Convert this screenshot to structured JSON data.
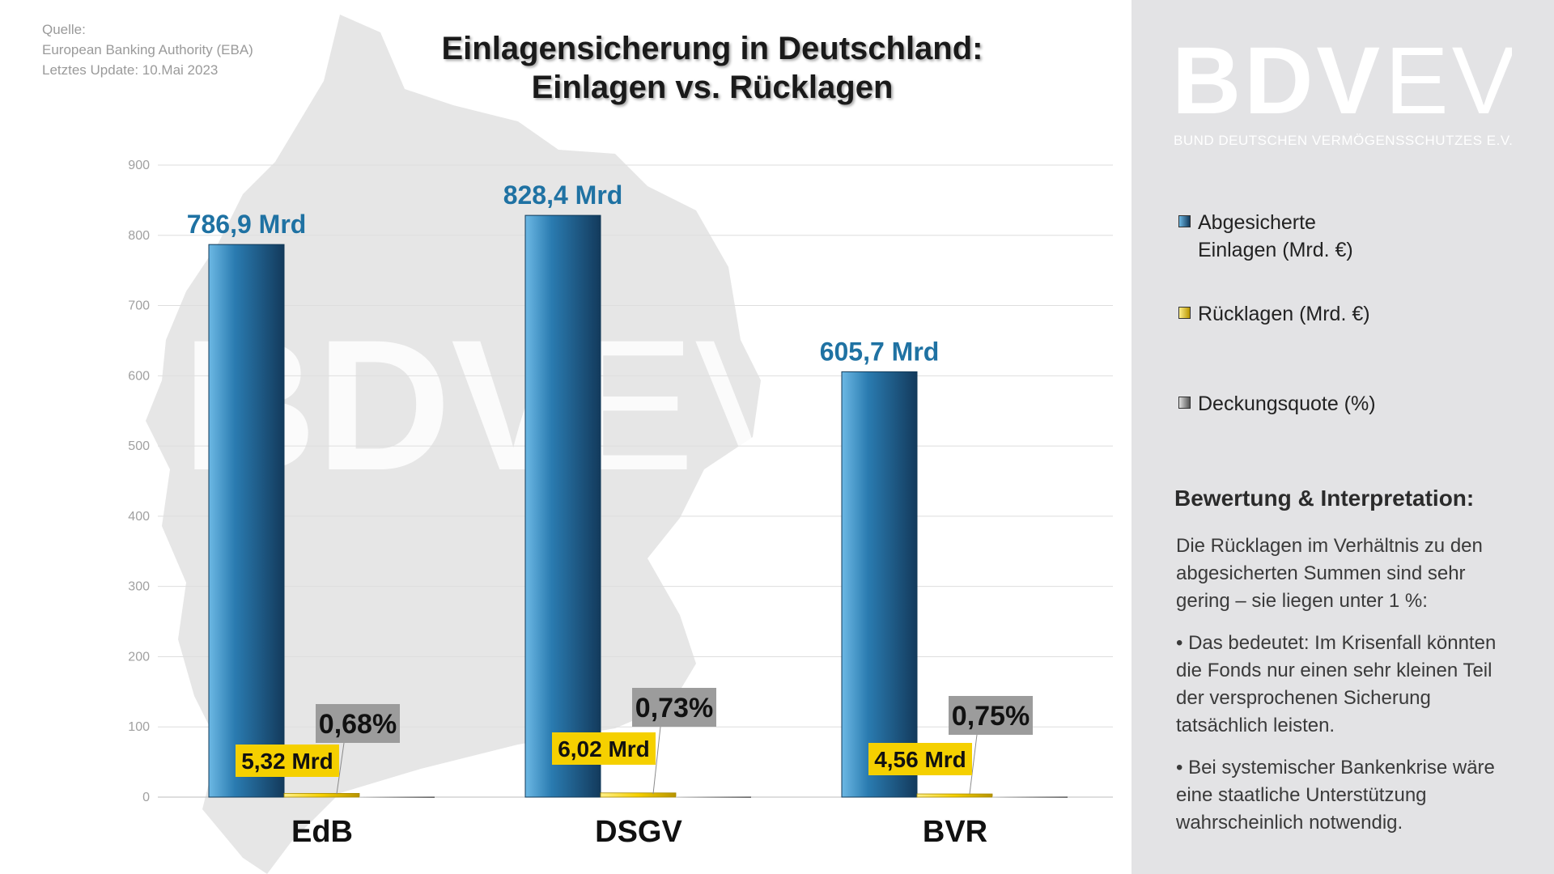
{
  "source": {
    "line1": "Quelle:",
    "line2": "European Banking Authority (EBA)",
    "line3": "Letztes Update: 10.Mai 2023"
  },
  "title": {
    "line1": "Einlagensicherung in Deutschland:",
    "line2": "Einlagen vs. Rücklagen"
  },
  "logo": {
    "text": "BDVEV",
    "bold_part": "BDV",
    "light_part": "EV",
    "subtitle": "BUND DEUTSCHEN VERMÖGENSSCHUTZES E.V."
  },
  "colors": {
    "deposits": "#2a7bb0",
    "reserves": "#f5d000",
    "ratio": "#9a9a9a",
    "value_label": "#1f72a3",
    "panel": "#e3e3e5"
  },
  "legend": [
    {
      "icon": "blue-square-icon",
      "line1": "Abgesicherte",
      "line2": "Einlagen (Mrd. €)"
    },
    {
      "icon": "yellow-square-icon",
      "line1": "Rücklagen (Mrd. €)",
      "line2": ""
    },
    {
      "icon": "gray-square-icon",
      "line1": "Deckungsquote (%)",
      "line2": ""
    }
  ],
  "evaluation": {
    "heading": "Bewertung & Interpretation:",
    "intro": "Die Rücklagen im Verhältnis zu den abgesicherten Summen sind sehr gering – sie liegen unter 1 %:",
    "bullet1": "• Das bedeutet: Im Krisenfall könnten die Fonds nur einen sehr kleinen Teil der versprochenen Sicherung tatsächlich leisten.",
    "bullet2": "• Bei systemischer Bankenkrise wäre eine staatliche Unterstützung wahrscheinlich notwendig."
  },
  "chart_data": {
    "type": "bar",
    "title": "Einlagensicherung in Deutschland: Einlagen vs. Rücklagen",
    "categories": [
      "EdB",
      "DSGV",
      "BVR"
    ],
    "series": [
      {
        "name": "Abgesicherte Einlagen (Mrd. €)",
        "values": [
          786.9,
          828.4,
          605.7
        ],
        "labels": [
          "786,9 Mrd",
          "828,4 Mrd",
          "605,7 Mrd"
        ]
      },
      {
        "name": "Rücklagen (Mrd. €)",
        "values": [
          5.32,
          6.02,
          4.56
        ],
        "labels": [
          "5,32 Mrd",
          "6,02 Mrd",
          "4,56 Mrd"
        ]
      },
      {
        "name": "Deckungsquote (%)",
        "values": [
          0.68,
          0.73,
          0.75
        ],
        "labels": [
          "0,68%",
          "0,73%",
          "0,75%"
        ]
      }
    ],
    "yticks": [
      "0",
      "100",
      "200",
      "300",
      "400",
      "500",
      "600",
      "700",
      "800",
      "900"
    ],
    "ylim": [
      0,
      900
    ],
    "grid": true,
    "legend_position": "right"
  }
}
